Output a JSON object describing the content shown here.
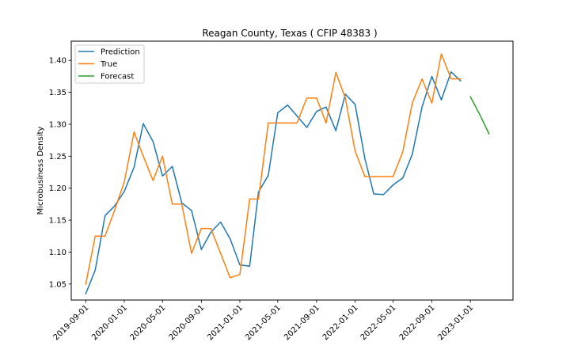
{
  "chart_data": {
    "type": "line",
    "title": "Reagan County, Texas ( CFIP 48383 )",
    "xlabel": "",
    "ylabel": "Microbusiness Density",
    "xlim": [
      "2019-07-17",
      "2023-05-16"
    ],
    "ylim": [
      1.025,
      1.43
    ],
    "x_ticks": [
      "2019-09-01",
      "2020-01-01",
      "2020-05-01",
      "2020-09-01",
      "2021-01-01",
      "2021-05-01",
      "2021-09-01",
      "2022-01-01",
      "2022-05-01",
      "2022-09-01",
      "2023-01-01"
    ],
    "y_ticks": [
      1.05,
      1.1,
      1.15,
      1.2,
      1.25,
      1.3,
      1.35,
      1.4
    ],
    "legend_position": "top-left",
    "grid": false,
    "series": [
      {
        "name": "Prediction",
        "color": "#1f77b4",
        "x": [
          "2019-09-01",
          "2019-10-01",
          "2019-11-01",
          "2019-12-01",
          "2020-01-01",
          "2020-02-01",
          "2020-03-01",
          "2020-04-01",
          "2020-05-01",
          "2020-06-01",
          "2020-07-01",
          "2020-08-01",
          "2020-09-01",
          "2020-10-01",
          "2020-11-01",
          "2020-12-01",
          "2021-01-01",
          "2021-02-01",
          "2021-03-01",
          "2021-04-01",
          "2021-05-01",
          "2021-06-01",
          "2021-07-01",
          "2021-08-01",
          "2021-09-01",
          "2021-10-01",
          "2021-11-01",
          "2021-12-01",
          "2022-01-01",
          "2022-02-01",
          "2022-03-01",
          "2022-04-01",
          "2022-05-01",
          "2022-06-01",
          "2022-07-01",
          "2022-08-01",
          "2022-09-01",
          "2022-10-01",
          "2022-11-01",
          "2022-12-01"
        ],
        "values": [
          1.035,
          1.072,
          1.157,
          1.172,
          1.195,
          1.233,
          1.301,
          1.273,
          1.219,
          1.234,
          1.177,
          1.165,
          1.104,
          1.131,
          1.147,
          1.121,
          1.08,
          1.078,
          1.194,
          1.22,
          1.318,
          1.33,
          1.313,
          1.295,
          1.32,
          1.327,
          1.29,
          1.347,
          1.331,
          1.246,
          1.191,
          1.19,
          1.205,
          1.216,
          1.253,
          1.327,
          1.375,
          1.338,
          1.382,
          1.368
        ]
      },
      {
        "name": "True",
        "color": "#ff7f0e",
        "x": [
          "2019-09-01",
          "2019-10-01",
          "2019-11-01",
          "2019-12-01",
          "2020-01-01",
          "2020-02-01",
          "2020-03-01",
          "2020-04-01",
          "2020-05-01",
          "2020-06-01",
          "2020-07-01",
          "2020-08-01",
          "2020-09-01",
          "2020-10-01",
          "2020-11-01",
          "2020-12-01",
          "2021-01-01",
          "2021-02-01",
          "2021-03-01",
          "2021-04-01",
          "2021-05-01",
          "2021-06-01",
          "2021-07-01",
          "2021-08-01",
          "2021-09-01",
          "2021-10-01",
          "2021-11-01",
          "2021-12-01",
          "2022-01-01",
          "2022-02-01",
          "2022-03-01",
          "2022-04-01",
          "2022-05-01",
          "2022-06-01",
          "2022-07-01",
          "2022-08-01",
          "2022-09-01",
          "2022-10-01",
          "2022-11-01",
          "2022-12-01"
        ],
        "values": [
          1.05,
          1.125,
          1.125,
          1.165,
          1.21,
          1.288,
          1.25,
          1.212,
          1.25,
          1.175,
          1.175,
          1.098,
          1.137,
          1.137,
          1.098,
          1.06,
          1.065,
          1.183,
          1.183,
          1.302,
          1.302,
          1.302,
          1.302,
          1.341,
          1.341,
          1.302,
          1.381,
          1.341,
          1.258,
          1.218,
          1.218,
          1.218,
          1.218,
          1.257,
          1.333,
          1.371,
          1.333,
          1.41,
          1.371,
          1.371
        ]
      },
      {
        "name": "Forecast",
        "color": "#2ca02c",
        "x": [
          "2023-01-01",
          "2023-02-01",
          "2023-03-01"
        ],
        "values": [
          1.343,
          1.314,
          1.285
        ]
      }
    ]
  }
}
